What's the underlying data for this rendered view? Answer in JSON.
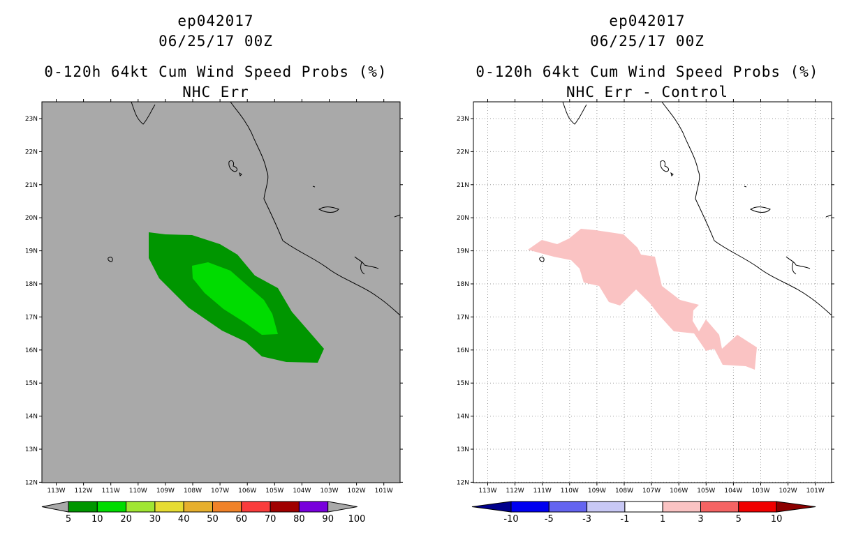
{
  "panels": [
    {
      "storm_id": "ep042017",
      "datetime": "06/25/17 00Z",
      "product": "0-120h 64kt Cum Wind Speed Probs (%)",
      "subtitle": "NHC Err",
      "background": "#a9a9a9",
      "colorbar": {
        "labels": [
          "5",
          "10",
          "20",
          "30",
          "40",
          "50",
          "60",
          "70",
          "80",
          "90",
          "100"
        ],
        "colors": [
          "#009600",
          "#00dc00",
          "#a0e632",
          "#e6dc32",
          "#e6af2d",
          "#f08228",
          "#fa3c3c",
          "#a00000",
          "#7800dc",
          "#a9a9a9"
        ],
        "under_color": "#a9a9a9"
      }
    },
    {
      "storm_id": "ep042017",
      "datetime": "06/25/17 00Z",
      "product": "0-120h 64kt Cum Wind Speed Probs (%)",
      "subtitle": "NHC Err - Control",
      "background": "#ffffff",
      "colorbar": {
        "labels": [
          "-10",
          "-5",
          "-3",
          "-1",
          "1",
          "3",
          "5",
          "10"
        ],
        "colors": [
          "#00008c",
          "#0000f0",
          "#6464f0",
          "#c8c8f5",
          "#ffffff",
          "#fac3c3",
          "#f56464",
          "#f00000",
          "#8c0000"
        ],
        "under_color": "#00008c",
        "over_color": "#8c0000"
      }
    }
  ],
  "axes": {
    "lat_labels": [
      "23N",
      "22N",
      "21N",
      "20N",
      "19N",
      "18N",
      "17N",
      "16N",
      "15N",
      "14N",
      "13N",
      "12N"
    ],
    "lon_labels": [
      "113W",
      "112W",
      "111W",
      "110W",
      "109W",
      "108W",
      "107W",
      "106W",
      "105W",
      "104W",
      "103W",
      "102W",
      "101W"
    ]
  },
  "fill_colors": {
    "prob_5": "#009600",
    "prob_10": "#00dc00",
    "diff_1_3": "#fac3c3"
  }
}
